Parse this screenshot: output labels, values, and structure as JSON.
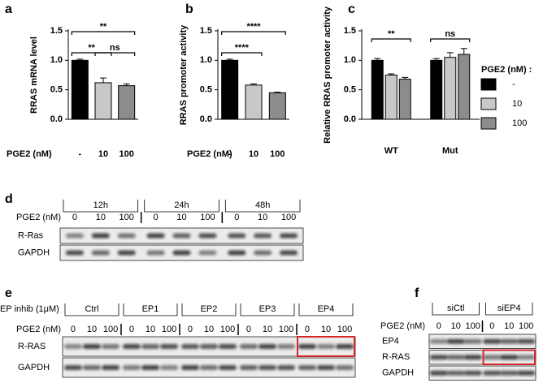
{
  "chart_data": [
    {
      "type": "bar",
      "panel": "a",
      "ylabel": "RRAS mRNA level",
      "xlabel": "PGE2 (nM)",
      "categories": [
        "-",
        "10",
        "100"
      ],
      "values": [
        1.0,
        0.62,
        0.57
      ],
      "errors": [
        0.02,
        0.08,
        0.03
      ],
      "colors": [
        "#000000",
        "#c8c8c8",
        "#8c8c8c"
      ],
      "ylim": [
        0,
        1.5
      ],
      "yticks": [
        {
          "value": 0,
          "label": "0.0"
        },
        {
          "value": 0.5,
          "label": "0.5"
        },
        {
          "value": 1.0,
          "label": "1.0"
        },
        {
          "value": 1.5,
          "label": "1.5"
        }
      ],
      "annotations": [
        {
          "text": "**",
          "between": [
            "-",
            "100"
          ]
        },
        {
          "text": "**",
          "between": [
            "-",
            "10"
          ]
        },
        {
          "text": "ns",
          "between": [
            "10",
            "100"
          ]
        }
      ]
    },
    {
      "type": "bar",
      "panel": "b",
      "ylabel": "RRAS promoter activity",
      "xlabel": "PGE2 (nM)",
      "categories": [
        "-",
        "10",
        "100"
      ],
      "values": [
        1.0,
        0.58,
        0.45
      ],
      "errors": [
        0.02,
        0.02,
        0.01
      ],
      "colors": [
        "#000000",
        "#c8c8c8",
        "#8c8c8c"
      ],
      "ylim": [
        0,
        1.5
      ],
      "yticks": [
        {
          "value": 0,
          "label": "0.0"
        },
        {
          "value": 0.5,
          "label": "0.5"
        },
        {
          "value": 1.0,
          "label": "1.0"
        },
        {
          "value": 1.5,
          "label": "1.5"
        }
      ],
      "annotations": [
        {
          "text": "****",
          "between": [
            "-",
            "100"
          ]
        },
        {
          "text": "****",
          "between": [
            "-",
            "10"
          ]
        }
      ]
    },
    {
      "type": "grouped-bar",
      "panel": "c",
      "ylabel": "Relative RRAS promoter activity",
      "legend_title": "PGE2 (nM) :",
      "categories": [
        "WT",
        "Mut"
      ],
      "series": [
        {
          "name": "-",
          "color": "#000000",
          "values": [
            1.0,
            1.0
          ],
          "errors": [
            0.03,
            0.03
          ]
        },
        {
          "name": "10",
          "color": "#c8c8c8",
          "values": [
            0.75,
            1.05
          ],
          "errors": [
            0.02,
            0.08
          ]
        },
        {
          "name": "100",
          "color": "#8c8c8c",
          "values": [
            0.68,
            1.1
          ],
          "errors": [
            0.03,
            0.1
          ]
        }
      ],
      "ylim": [
        0,
        1.5
      ],
      "yticks": [
        {
          "value": 0,
          "label": "0.0"
        },
        {
          "value": 0.5,
          "label": "0.5"
        },
        {
          "value": 1.0,
          "label": "1.0"
        },
        {
          "value": 1.5,
          "label": "1.5"
        }
      ],
      "annotations": [
        {
          "text": "**",
          "category": "WT"
        },
        {
          "text": "ns",
          "category": "Mut"
        }
      ]
    }
  ],
  "blots": [
    {
      "panel": "d",
      "groups": [
        "12h",
        "24h",
        "48h"
      ],
      "dose_label": "PGE2 (nM)",
      "doses": [
        "0",
        "10",
        "100"
      ],
      "rows": [
        "R-Ras",
        "GAPDH"
      ]
    },
    {
      "panel": "e",
      "group_label": "EP inhib (1μM)",
      "groups": [
        "Ctrl",
        "EP1",
        "EP2",
        "EP3",
        "EP4"
      ],
      "dose_label": "PGE2 (nM)",
      "doses": [
        "0",
        "10",
        "100"
      ],
      "rows": [
        "R-RAS",
        "GAPDH"
      ],
      "highlight": {
        "group": "EP4",
        "row": "R-RAS",
        "color": "#d62728"
      }
    },
    {
      "panel": "f",
      "groups": [
        "siCtl",
        "siEP4"
      ],
      "dose_label": "PGE2 (nM)",
      "doses": [
        "0",
        "10",
        "100"
      ],
      "rows": [
        "EP4",
        "R-RAS",
        "GAPDH"
      ],
      "highlight": {
        "group": "siEP4",
        "row": "R-RAS",
        "color": "#d62728"
      }
    }
  ]
}
